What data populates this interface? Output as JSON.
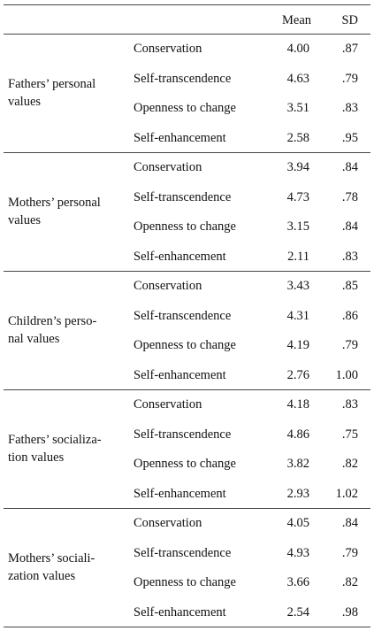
{
  "header": [
    "Mean",
    "SD"
  ],
  "groups": [
    {
      "label": [
        "Fathers’ personal",
        "values"
      ],
      "rows": [
        [
          "Conservation",
          "4.00",
          ".87"
        ],
        [
          "Self-transcendence",
          "4.63",
          ".79"
        ],
        [
          "Openness to change",
          "3.51",
          ".83"
        ],
        [
          "Self-enhancement",
          "2.58",
          ".95"
        ]
      ]
    },
    {
      "label": [
        "Mothers’ personal",
        "values"
      ],
      "rows": [
        [
          "Conservation",
          "3.94",
          ".84"
        ],
        [
          "Self-transcendence",
          "4.73",
          ".78"
        ],
        [
          "Openness to change",
          "3.15",
          ".84"
        ],
        [
          "Self-enhancement",
          "2.11",
          ".83"
        ]
      ]
    },
    {
      "label": [
        "Children’s perso-",
        "nal values"
      ],
      "rows": [
        [
          "Conservation",
          "3.43",
          ".85"
        ],
        [
          "Self-transcendence",
          "4.31",
          ".86"
        ],
        [
          "Openness to change",
          "4.19",
          ".79"
        ],
        [
          "Self-enhancement",
          "2.76",
          "1.00"
        ]
      ]
    },
    {
      "label": [
        "Fathers’ socializa-",
        "tion values"
      ],
      "rows": [
        [
          "Conservation",
          "4.18",
          ".83"
        ],
        [
          "Self-transcendence",
          "4.86",
          ".75"
        ],
        [
          "Openness to change",
          "3.82",
          ".82"
        ],
        [
          "Self-enhancement",
          "2.93",
          "1.02"
        ]
      ]
    },
    {
      "label": [
        "Mothers’ sociali-",
        "zation values"
      ],
      "rows": [
        [
          "Conservation",
          "4.05",
          ".84"
        ],
        [
          "Self-transcendence",
          "4.93",
          ".79"
        ],
        [
          "Openness to change",
          "3.66",
          ".82"
        ],
        [
          "Self-enhancement",
          "2.54",
          ".98"
        ]
      ]
    }
  ]
}
